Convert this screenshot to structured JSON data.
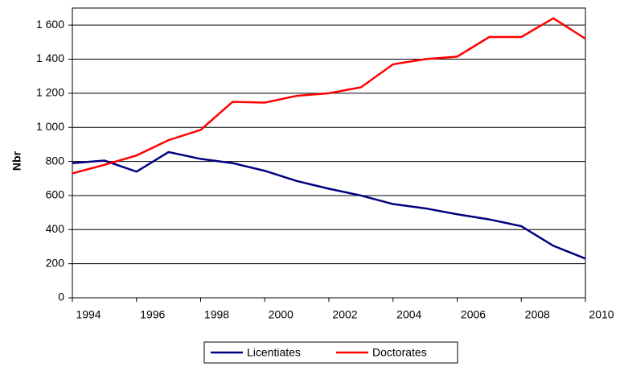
{
  "chart_data": {
    "type": "line",
    "ylabel": "Nbr",
    "x": [
      1994,
      1995,
      1996,
      1997,
      1998,
      1999,
      2000,
      2001,
      2002,
      2003,
      2004,
      2005,
      2006,
      2007,
      2008,
      2009,
      2010
    ],
    "series": [
      {
        "name": "Licentiates",
        "color": "#000080",
        "values": [
          790,
          805,
          740,
          855,
          815,
          790,
          745,
          685,
          640,
          600,
          550,
          525,
          490,
          460,
          420,
          305,
          230
        ]
      },
      {
        "name": "Doctorates",
        "color": "#ff0000",
        "values": [
          730,
          780,
          835,
          925,
          985,
          1150,
          1145,
          1185,
          1200,
          1235,
          1370,
          1400,
          1415,
          1530,
          1530,
          1640,
          1520
        ]
      }
    ],
    "xlim": [
      1994,
      2010
    ],
    "xticks": [
      1994,
      1996,
      1998,
      2000,
      2002,
      2004,
      2006,
      2008,
      2010
    ],
    "ylim": [
      0,
      1700
    ],
    "yticks": [
      0,
      200,
      400,
      600,
      800,
      {
        "value": 1000,
        "label": "1 000"
      },
      {
        "value": 1200,
        "label": "1 200"
      },
      {
        "value": 1400,
        "label": "1 400"
      },
      {
        "value": 1600,
        "label": "1 600"
      }
    ],
    "grid": true,
    "legend": "bottom"
  }
}
